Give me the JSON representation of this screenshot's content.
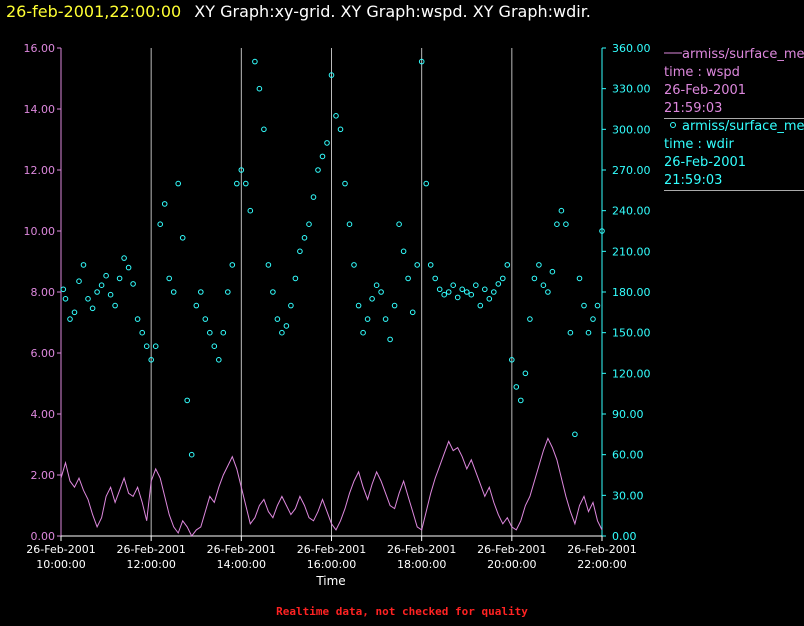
{
  "header": {
    "datetime": "26-feb-2001,22:00:00",
    "graphs": "XY Graph:xy-grid.  XY Graph:wspd.  XY Graph:wdir."
  },
  "legend": [
    {
      "line1": "armiss/surface_me",
      "line2": "time : wspd",
      "line3": "26-Feb-2001",
      "line4": "21:59:03",
      "color": "#dd88dd",
      "marker": "line"
    },
    {
      "line1": "armiss/surface_me",
      "line2": "time : wdir",
      "line3": "26-Feb-2001",
      "line4": "21:59:03",
      "color": "#33ffff",
      "marker": "circle"
    }
  ],
  "footer": "Realtime data, not checked for quality",
  "chart_data": {
    "type": "scatter",
    "xlabel": "Time",
    "x_range": [
      "26-Feb-2001 10:00:00",
      "26-Feb-2001 22:00:00"
    ],
    "x_ticks": [
      {
        "date": "26-Feb-2001",
        "time": "10:00:00",
        "hour": 10
      },
      {
        "date": "26-Feb-2001",
        "time": "12:00:00",
        "hour": 12
      },
      {
        "date": "26-Feb-2001",
        "time": "14:00:00",
        "hour": 14
      },
      {
        "date": "26-Feb-2001",
        "time": "16:00:00",
        "hour": 16
      },
      {
        "date": "26-Feb-2001",
        "time": "18:00:00",
        "hour": 18
      },
      {
        "date": "26-Feb-2001",
        "time": "20:00:00",
        "hour": 20
      },
      {
        "date": "26-Feb-2001",
        "time": "22:00:00",
        "hour": 22
      }
    ],
    "y_left": {
      "range": [
        0,
        16
      ],
      "ticks": [
        "0.00",
        "2.00",
        "4.00",
        "6.00",
        "8.00",
        "10.00",
        "12.00",
        "14.00",
        "16.00"
      ],
      "color": "#dd88dd"
    },
    "y_right": {
      "range": [
        0,
        360
      ],
      "ticks": [
        "0.00",
        "30.00",
        "60.00",
        "90.00",
        "120.00",
        "150.00",
        "180.00",
        "210.00",
        "240.00",
        "270.00",
        "300.00",
        "330.00",
        "360.00"
      ],
      "color": "#33ffff"
    },
    "grid": "vertical lines at each x tick",
    "series": [
      {
        "name": "wspd",
        "axis": "left",
        "style": "line",
        "color": "#dd88dd",
        "points": [
          [
            10.0,
            1.9
          ],
          [
            10.1,
            2.4
          ],
          [
            10.2,
            1.8
          ],
          [
            10.3,
            1.6
          ],
          [
            10.4,
            1.9
          ],
          [
            10.5,
            1.5
          ],
          [
            10.6,
            1.2
          ],
          [
            10.7,
            0.7
          ],
          [
            10.8,
            0.3
          ],
          [
            10.9,
            0.6
          ],
          [
            11.0,
            1.3
          ],
          [
            11.1,
            1.6
          ],
          [
            11.2,
            1.1
          ],
          [
            11.3,
            1.5
          ],
          [
            11.4,
            1.9
          ],
          [
            11.5,
            1.4
          ],
          [
            11.6,
            1.3
          ],
          [
            11.7,
            1.6
          ],
          [
            11.8,
            1.1
          ],
          [
            11.9,
            0.5
          ],
          [
            12.0,
            1.8
          ],
          [
            12.1,
            2.2
          ],
          [
            12.2,
            1.9
          ],
          [
            12.3,
            1.3
          ],
          [
            12.4,
            0.7
          ],
          [
            12.5,
            0.3
          ],
          [
            12.6,
            0.1
          ],
          [
            12.7,
            0.5
          ],
          [
            12.8,
            0.3
          ],
          [
            12.9,
            0.0
          ],
          [
            13.0,
            0.2
          ],
          [
            13.1,
            0.3
          ],
          [
            13.2,
            0.8
          ],
          [
            13.3,
            1.3
          ],
          [
            13.4,
            1.1
          ],
          [
            13.5,
            1.6
          ],
          [
            13.6,
            2.0
          ],
          [
            13.7,
            2.3
          ],
          [
            13.8,
            2.6
          ],
          [
            13.9,
            2.2
          ],
          [
            14.0,
            1.6
          ],
          [
            14.1,
            1.0
          ],
          [
            14.2,
            0.4
          ],
          [
            14.3,
            0.6
          ],
          [
            14.4,
            1.0
          ],
          [
            14.5,
            1.2
          ],
          [
            14.6,
            0.8
          ],
          [
            14.7,
            0.6
          ],
          [
            14.8,
            1.0
          ],
          [
            14.9,
            1.3
          ],
          [
            15.0,
            1.0
          ],
          [
            15.1,
            0.7
          ],
          [
            15.2,
            0.9
          ],
          [
            15.3,
            1.3
          ],
          [
            15.4,
            1.0
          ],
          [
            15.5,
            0.6
          ],
          [
            15.6,
            0.5
          ],
          [
            15.7,
            0.8
          ],
          [
            15.8,
            1.2
          ],
          [
            15.9,
            0.8
          ],
          [
            16.0,
            0.4
          ],
          [
            16.1,
            0.2
          ],
          [
            16.2,
            0.5
          ],
          [
            16.3,
            0.9
          ],
          [
            16.4,
            1.4
          ],
          [
            16.5,
            1.8
          ],
          [
            16.6,
            2.1
          ],
          [
            16.7,
            1.6
          ],
          [
            16.8,
            1.2
          ],
          [
            16.9,
            1.7
          ],
          [
            17.0,
            2.1
          ],
          [
            17.1,
            1.8
          ],
          [
            17.2,
            1.4
          ],
          [
            17.3,
            1.0
          ],
          [
            17.4,
            0.9
          ],
          [
            17.5,
            1.4
          ],
          [
            17.6,
            1.8
          ],
          [
            17.7,
            1.3
          ],
          [
            17.8,
            0.8
          ],
          [
            17.9,
            0.3
          ],
          [
            18.0,
            0.2
          ],
          [
            18.1,
            0.8
          ],
          [
            18.2,
            1.4
          ],
          [
            18.3,
            1.9
          ],
          [
            18.4,
            2.3
          ],
          [
            18.5,
            2.7
          ],
          [
            18.6,
            3.1
          ],
          [
            18.7,
            2.8
          ],
          [
            18.8,
            2.9
          ],
          [
            18.9,
            2.6
          ],
          [
            19.0,
            2.2
          ],
          [
            19.1,
            2.5
          ],
          [
            19.2,
            2.1
          ],
          [
            19.3,
            1.7
          ],
          [
            19.4,
            1.3
          ],
          [
            19.5,
            1.6
          ],
          [
            19.6,
            1.1
          ],
          [
            19.7,
            0.7
          ],
          [
            19.8,
            0.4
          ],
          [
            19.9,
            0.6
          ],
          [
            20.0,
            0.3
          ],
          [
            20.1,
            0.2
          ],
          [
            20.2,
            0.5
          ],
          [
            20.3,
            1.0
          ],
          [
            20.4,
            1.3
          ],
          [
            20.5,
            1.8
          ],
          [
            20.6,
            2.3
          ],
          [
            20.7,
            2.8
          ],
          [
            20.8,
            3.2
          ],
          [
            20.9,
            2.9
          ],
          [
            21.0,
            2.5
          ],
          [
            21.1,
            1.9
          ],
          [
            21.2,
            1.3
          ],
          [
            21.3,
            0.8
          ],
          [
            21.4,
            0.4
          ],
          [
            21.5,
            1.0
          ],
          [
            21.6,
            1.3
          ],
          [
            21.7,
            0.8
          ],
          [
            21.8,
            1.1
          ],
          [
            21.9,
            0.5
          ],
          [
            22.0,
            0.2
          ]
        ]
      },
      {
        "name": "wdir",
        "axis": "right",
        "style": "circles",
        "color": "#33ffff",
        "points": [
          [
            10.05,
            182
          ],
          [
            10.1,
            175
          ],
          [
            10.2,
            160
          ],
          [
            10.3,
            165
          ],
          [
            10.4,
            188
          ],
          [
            10.5,
            200
          ],
          [
            10.6,
            175
          ],
          [
            10.7,
            168
          ],
          [
            10.8,
            180
          ],
          [
            10.9,
            185
          ],
          [
            11.0,
            192
          ],
          [
            11.1,
            178
          ],
          [
            11.2,
            170
          ],
          [
            11.3,
            190
          ],
          [
            11.4,
            205
          ],
          [
            11.5,
            198
          ],
          [
            11.6,
            186
          ],
          [
            11.7,
            160
          ],
          [
            11.8,
            150
          ],
          [
            11.9,
            140
          ],
          [
            12.0,
            130
          ],
          [
            12.1,
            140
          ],
          [
            12.2,
            230
          ],
          [
            12.3,
            245
          ],
          [
            12.4,
            190
          ],
          [
            12.5,
            180
          ],
          [
            12.6,
            260
          ],
          [
            12.7,
            220
          ],
          [
            12.8,
            100
          ],
          [
            12.9,
            60
          ],
          [
            13.0,
            170
          ],
          [
            13.1,
            180
          ],
          [
            13.2,
            160
          ],
          [
            13.3,
            150
          ],
          [
            13.4,
            140
          ],
          [
            13.5,
            130
          ],
          [
            13.6,
            150
          ],
          [
            13.7,
            180
          ],
          [
            13.8,
            200
          ],
          [
            13.9,
            260
          ],
          [
            14.0,
            270
          ],
          [
            14.1,
            260
          ],
          [
            14.2,
            240
          ],
          [
            14.3,
            350
          ],
          [
            14.4,
            330
          ],
          [
            14.5,
            300
          ],
          [
            14.6,
            200
          ],
          [
            14.7,
            180
          ],
          [
            14.8,
            160
          ],
          [
            14.9,
            150
          ],
          [
            15.0,
            155
          ],
          [
            15.1,
            170
          ],
          [
            15.2,
            190
          ],
          [
            15.3,
            210
          ],
          [
            15.4,
            220
          ],
          [
            15.5,
            230
          ],
          [
            15.6,
            250
          ],
          [
            15.7,
            270
          ],
          [
            15.8,
            280
          ],
          [
            15.9,
            290
          ],
          [
            16.0,
            340
          ],
          [
            16.1,
            310
          ],
          [
            16.2,
            300
          ],
          [
            16.3,
            260
          ],
          [
            16.4,
            230
          ],
          [
            16.5,
            200
          ],
          [
            16.6,
            170
          ],
          [
            16.7,
            150
          ],
          [
            16.8,
            160
          ],
          [
            16.9,
            175
          ],
          [
            17.0,
            185
          ],
          [
            17.1,
            180
          ],
          [
            17.2,
            160
          ],
          [
            17.3,
            145
          ],
          [
            17.4,
            170
          ],
          [
            17.5,
            230
          ],
          [
            17.6,
            210
          ],
          [
            17.7,
            190
          ],
          [
            17.8,
            165
          ],
          [
            17.9,
            200
          ],
          [
            18.0,
            350
          ],
          [
            18.1,
            260
          ],
          [
            18.2,
            200
          ],
          [
            18.3,
            190
          ],
          [
            18.4,
            182
          ],
          [
            18.5,
            178
          ],
          [
            18.6,
            180
          ],
          [
            18.7,
            185
          ],
          [
            18.8,
            176
          ],
          [
            18.9,
            182
          ],
          [
            19.0,
            180
          ],
          [
            19.1,
            178
          ],
          [
            19.2,
            185
          ],
          [
            19.3,
            170
          ],
          [
            19.4,
            182
          ],
          [
            19.5,
            175
          ],
          [
            19.6,
            180
          ],
          [
            19.7,
            186
          ],
          [
            19.8,
            190
          ],
          [
            19.9,
            200
          ],
          [
            20.0,
            130
          ],
          [
            20.1,
            110
          ],
          [
            20.2,
            100
          ],
          [
            20.3,
            120
          ],
          [
            20.4,
            160
          ],
          [
            20.5,
            190
          ],
          [
            20.6,
            200
          ],
          [
            20.7,
            185
          ],
          [
            20.8,
            180
          ],
          [
            20.9,
            195
          ],
          [
            21.0,
            230
          ],
          [
            21.1,
            240
          ],
          [
            21.2,
            230
          ],
          [
            21.3,
            150
          ],
          [
            21.4,
            75
          ],
          [
            21.5,
            190
          ],
          [
            21.6,
            170
          ],
          [
            21.7,
            150
          ],
          [
            21.8,
            160
          ],
          [
            21.9,
            170
          ],
          [
            22.0,
            225
          ]
        ]
      }
    ]
  }
}
